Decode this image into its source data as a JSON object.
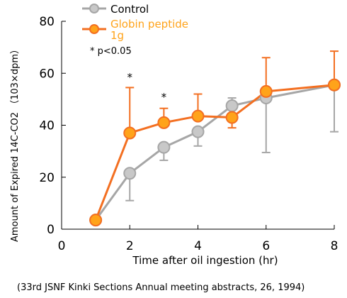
{
  "chart_data": {
    "type": "line",
    "xlabel": "Time after oil ingestion (hr)",
    "ylabel": "Amount of Expired 14C-CO2 （103×dpm）",
    "xlim": [
      0,
      8
    ],
    "ylim": [
      0,
      80
    ],
    "xticks": [
      "0",
      "2",
      "4",
      "6",
      "8"
    ],
    "yticks": [
      "0",
      "20",
      "40",
      "60",
      "80"
    ],
    "grid": false,
    "legend_position": "top-left",
    "series": [
      {
        "name": "Control",
        "color": "#a6a6a6",
        "marker_fill": "#c8c8c8",
        "x": [
          1,
          2,
          3,
          4,
          5,
          6,
          8
        ],
        "y": [
          3.5,
          21.5,
          31.5,
          37.5,
          47.5,
          50.5,
          55.5
        ],
        "error_up": [
          null,
          null,
          null,
          null,
          3,
          null,
          null
        ],
        "error_down": [
          null,
          10.5,
          5,
          5.5,
          null,
          21,
          18
        ]
      },
      {
        "name": "Globin peptide 1g",
        "color": "#f36f21",
        "marker_fill": "#ffa31a",
        "x": [
          1,
          2,
          3,
          4,
          5,
          6,
          8
        ],
        "y": [
          3.5,
          37,
          41,
          43.5,
          43,
          53,
          55.5
        ],
        "error_up": [
          null,
          17.5,
          5.5,
          8.5,
          null,
          13,
          13
        ],
        "error_down": [
          null,
          null,
          null,
          null,
          4,
          null,
          null
        ]
      }
    ],
    "annotations": [
      {
        "text": "*",
        "x": 2
      },
      {
        "text": "*",
        "x": 3
      },
      {
        "text": "* p<0.05"
      }
    ]
  },
  "source": "(33rd JSNF Kinki Sections Annual meeting abstracts, 26, 1994)"
}
